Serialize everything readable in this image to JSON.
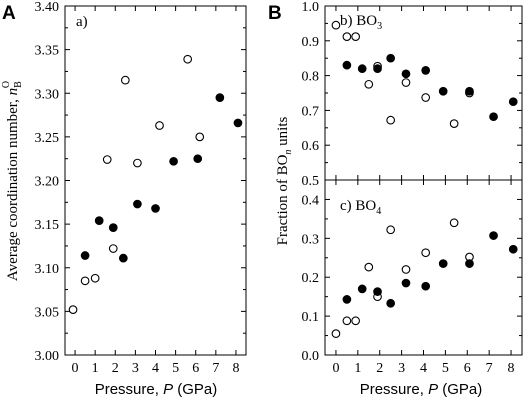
{
  "panel_labels": {
    "a": "A",
    "b": "B"
  },
  "chart_data": [
    {
      "type": "scatter",
      "annotation": "a)",
      "xlabel_prefix": "Pressure, ",
      "xlabel_var": "P",
      "xlabel_suffix": " (GPa)",
      "ylabel_prefix": "Average coordination number, ",
      "ylabel_var": "n",
      "ylabel_sub": "B",
      "ylabel_sup": "O",
      "xlim": [
        -0.5,
        8.5
      ],
      "ylim": [
        3.0,
        3.4
      ],
      "xticks": [
        "0",
        "1",
        "2",
        "3",
        "4",
        "5",
        "6",
        "7",
        "8"
      ],
      "yticks": [
        "3.00",
        "3.05",
        "3.10",
        "3.15",
        "3.20",
        "3.25",
        "3.30",
        "3.35",
        "3.40"
      ],
      "series": [
        {
          "marker": "open",
          "x": [
            -0.1,
            0.5,
            1.0,
            1.6,
            1.9,
            2.5,
            3.1,
            4.2,
            5.6,
            6.2
          ],
          "y": [
            3.052,
            3.085,
            3.088,
            3.224,
            3.122,
            3.315,
            3.22,
            3.263,
            3.339,
            3.25
          ]
        },
        {
          "marker": "filled",
          "x": [
            0.5,
            1.2,
            1.9,
            2.4,
            3.1,
            4.0,
            4.9,
            6.1,
            7.2,
            8.1
          ],
          "y": [
            3.114,
            3.154,
            3.146,
            3.111,
            3.173,
            3.168,
            3.222,
            3.225,
            3.295,
            3.266
          ]
        }
      ]
    },
    {
      "type": "scatter",
      "annotation_prefix": "b) BO",
      "annotation_sub": "3",
      "xlim": [
        -0.5,
        8.5
      ],
      "ylim": [
        0.5,
        1.0
      ],
      "yticks": [
        "0.5",
        "0.6",
        "0.7",
        "0.8",
        "0.9",
        "1.0"
      ],
      "series": [
        {
          "marker": "open",
          "x": [
            0.0,
            0.5,
            0.9,
            1.5,
            1.9,
            2.5,
            3.2,
            4.1,
            5.4,
            6.1
          ],
          "y": [
            0.945,
            0.912,
            0.912,
            0.775,
            0.827,
            0.672,
            0.78,
            0.737,
            0.662,
            0.75
          ]
        },
        {
          "marker": "filled",
          "x": [
            0.5,
            1.2,
            1.9,
            2.5,
            3.2,
            4.1,
            4.9,
            6.1,
            7.2,
            8.1
          ],
          "y": [
            0.83,
            0.82,
            0.82,
            0.85,
            0.805,
            0.815,
            0.755,
            0.755,
            0.682,
            0.725
          ]
        }
      ]
    },
    {
      "type": "scatter",
      "annotation_prefix": "c) BO",
      "annotation_sub": "4",
      "xlim": [
        -0.5,
        8.5
      ],
      "ylim": [
        0.0,
        0.45
      ],
      "xticks": [
        "0",
        "1",
        "2",
        "3",
        "4",
        "5",
        "6",
        "7",
        "8"
      ],
      "yticks": [
        "0.0",
        "0.1",
        "0.2",
        "0.3",
        "0.4"
      ],
      "series": [
        {
          "marker": "open",
          "x": [
            0.0,
            0.5,
            0.9,
            1.5,
            1.9,
            2.5,
            3.2,
            4.1,
            5.4,
            6.1
          ],
          "y": [
            0.055,
            0.088,
            0.088,
            0.226,
            0.15,
            0.322,
            0.22,
            0.263,
            0.34,
            0.252
          ]
        },
        {
          "marker": "filled",
          "x": [
            0.5,
            1.2,
            1.9,
            2.5,
            3.2,
            4.1,
            4.9,
            6.1,
            7.2,
            8.1
          ],
          "y": [
            0.143,
            0.17,
            0.163,
            0.133,
            0.185,
            0.177,
            0.235,
            0.235,
            0.307,
            0.272
          ]
        }
      ]
    }
  ],
  "shared": {
    "xlabel_prefix": "Pressure, ",
    "xlabel_var": "P",
    "xlabel_suffix": " (GPa)",
    "ylabel_prefix": "Fraction of BO",
    "ylabel_sub": "n",
    "ylabel_suffix": " units"
  }
}
